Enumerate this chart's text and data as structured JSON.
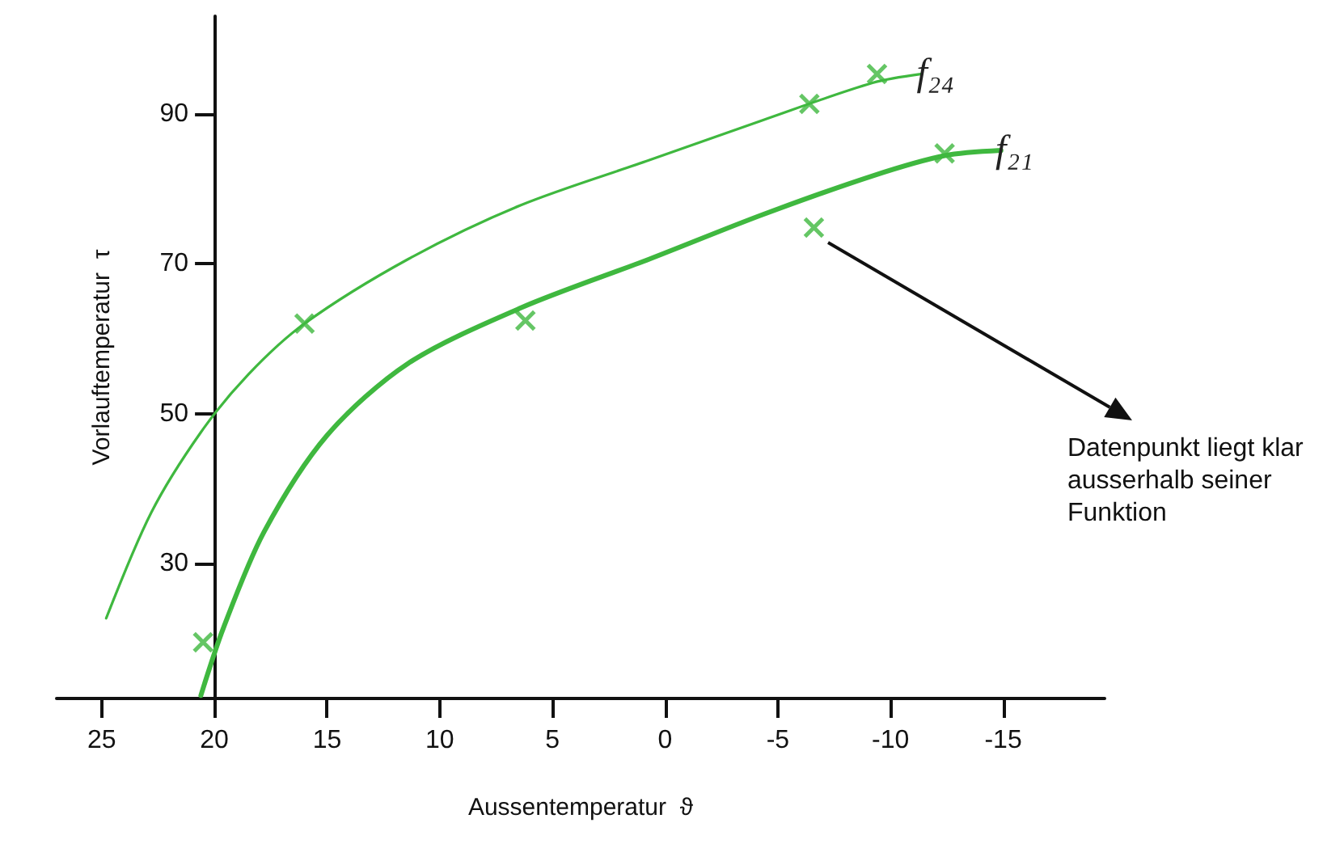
{
  "chart_data": {
    "type": "line",
    "xlabel": "Aussentemperatur  ϑ",
    "ylabel": "Vorlauftemperatur  τ",
    "xlim": [
      27,
      -19.5
    ],
    "xticks": [
      25,
      20,
      15,
      10,
      5,
      0,
      -5,
      -10,
      -15
    ],
    "ylim": [
      12,
      103
    ],
    "yticks": [
      30,
      50,
      70,
      90
    ],
    "grid": false,
    "legend": false,
    "series": [
      {
        "name": "f₂₄",
        "color": "#3fb83f",
        "marker": "none",
        "x": [
          24.8,
          22.8,
          20.6,
          18.5,
          16.0,
          11.4,
          6.4,
          0.7,
          -4.3,
          -9.2,
          -11.4
        ],
        "values": [
          22.7,
          36.8,
          47.5,
          55.2,
          62.0,
          70.6,
          77.8,
          83.8,
          89.1,
          94.1,
          95.3
        ]
      },
      {
        "name": "f₂₁",
        "color": "#3fb83f",
        "marker": "none",
        "x": [
          20.6,
          19.6,
          17.8,
          15.0,
          11.4,
          6.4,
          0.7,
          -4.3,
          -9.2,
          -12.4,
          -14.9
        ],
        "values": [
          12.4,
          21.4,
          34.2,
          47.1,
          56.7,
          64.1,
          70.6,
          76.5,
          81.7,
          84.4,
          85.1
        ]
      },
      {
        "type": "scatter",
        "color": "#3fb83f",
        "marker": "cross",
        "x": [
          16.0,
          -6.4,
          -9.4
        ],
        "values": [
          62.0,
          91.3,
          95.3
        ]
      },
      {
        "type": "scatter",
        "color": "#3fb83f",
        "marker": "cross",
        "x": [
          20.5,
          6.2,
          -6.6,
          -12.4
        ],
        "values": [
          19.5,
          62.4,
          74.8,
          84.7
        ]
      }
    ],
    "annotations": [
      "Datenpunkt liegt klar ausserhalb seiner Funktion"
    ]
  }
}
